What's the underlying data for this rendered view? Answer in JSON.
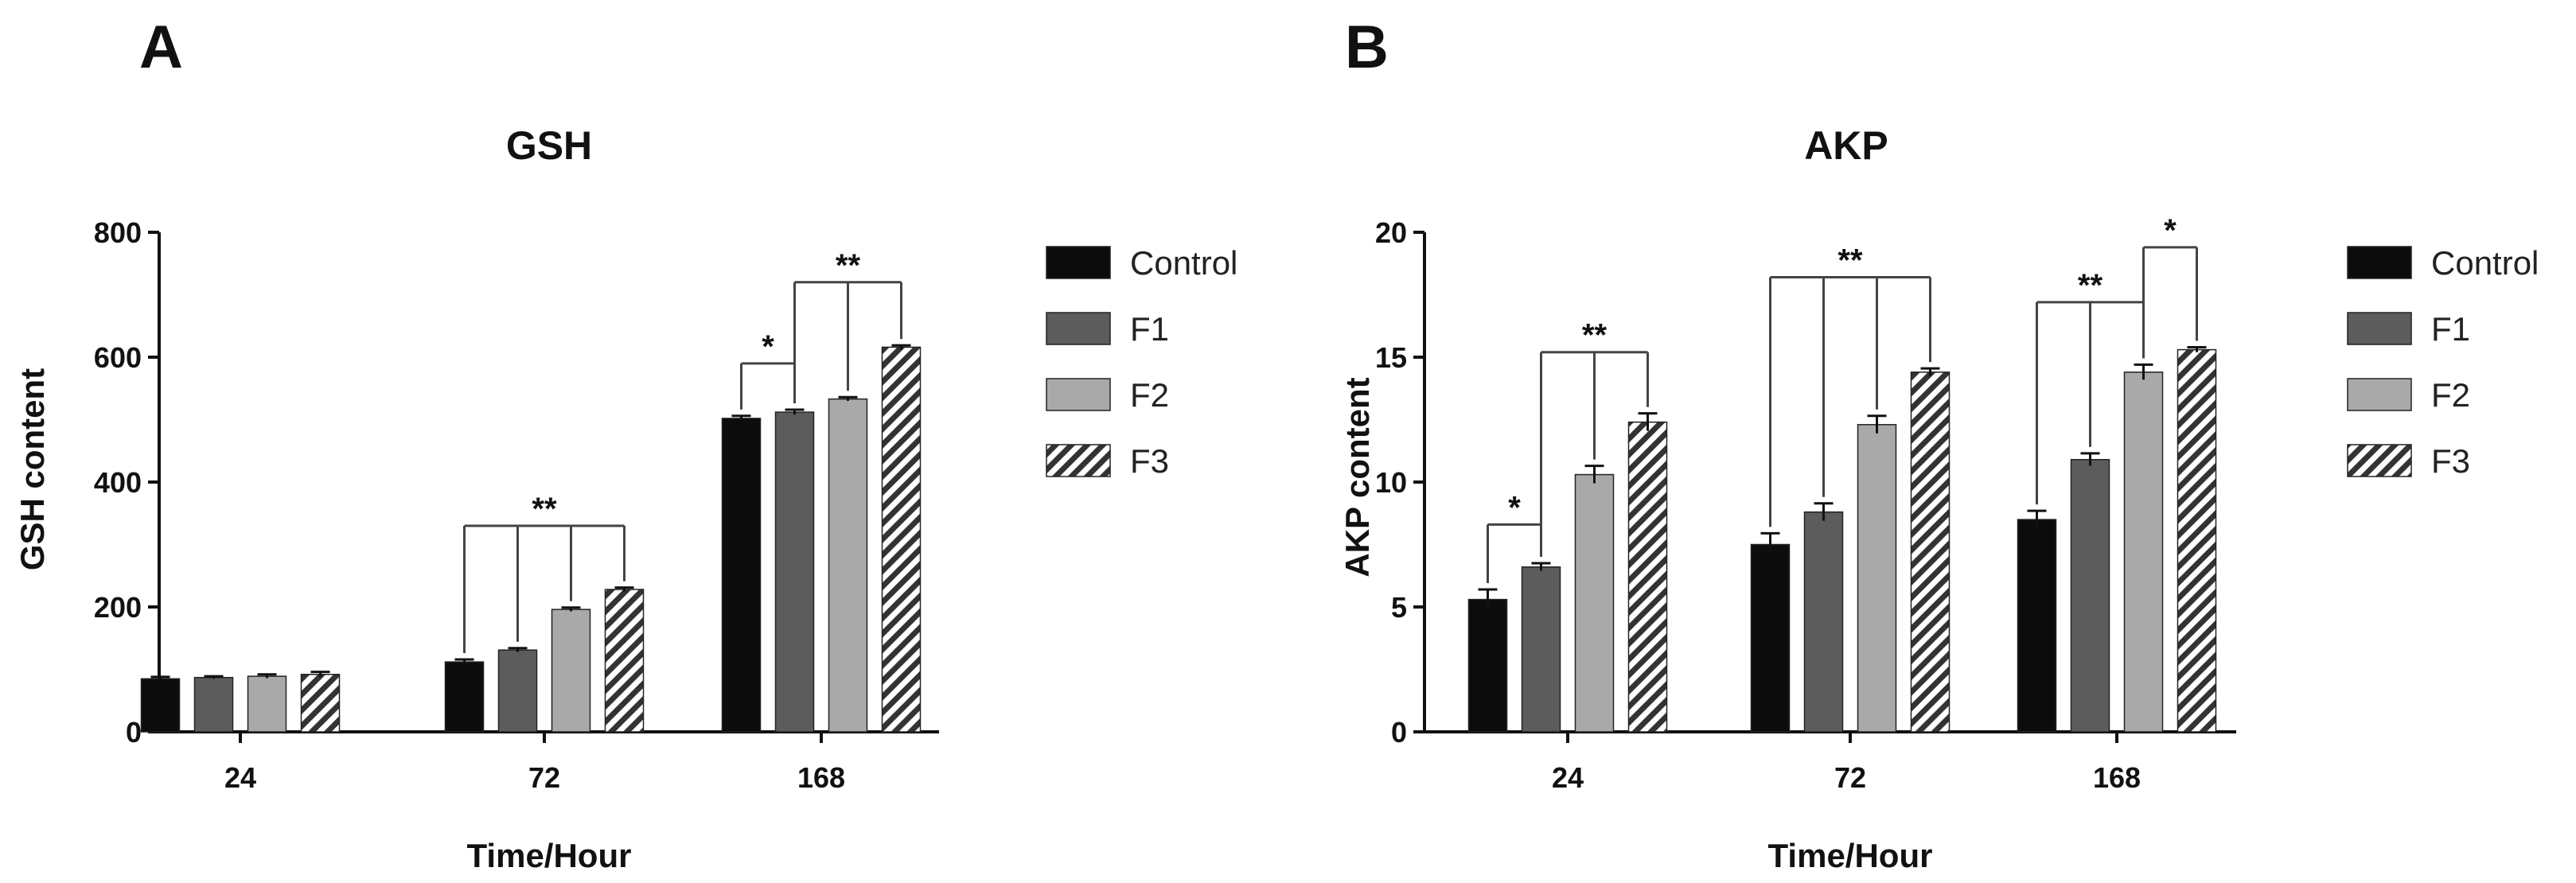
{
  "colors": {
    "Control": "#0c0c0c",
    "F1": "#5c5c5c",
    "F2": "#a9a9a9",
    "F3": "hatch"
  },
  "chart_data": [
    {
      "panel": "A",
      "type": "bar",
      "title": "GSH",
      "xlabel": "Time/Hour",
      "ylabel": "GSH content",
      "categories": [
        "24",
        "72",
        "168"
      ],
      "ylim": [
        0,
        800
      ],
      "yticks": [
        0,
        200,
        400,
        600,
        800
      ],
      "legend": "right",
      "grid": false,
      "series": [
        {
          "name": "Control",
          "values": [
            85,
            112,
            502
          ],
          "errors": [
            3,
            4,
            4
          ]
        },
        {
          "name": "F1",
          "values": [
            87,
            131,
            512
          ],
          "errors": [
            2,
            3,
            4
          ]
        },
        {
          "name": "F2",
          "values": [
            89,
            196,
            533
          ],
          "errors": [
            3,
            3,
            3
          ]
        },
        {
          "name": "F3",
          "values": [
            92,
            228,
            616
          ],
          "errors": [
            4,
            3,
            3
          ]
        }
      ],
      "annotations": [
        {
          "label": "**",
          "group": 1,
          "from": 0,
          "to": [
            1,
            2,
            3
          ],
          "y": 330
        },
        {
          "label": "*",
          "group": 2,
          "from": 0,
          "to": [
            1
          ],
          "y": 590
        },
        {
          "label": "**",
          "group": 2,
          "from": 1,
          "to": [
            2,
            3
          ],
          "y": 720
        }
      ]
    },
    {
      "panel": "B",
      "type": "bar",
      "title": "AKP",
      "xlabel": "Time/Hour",
      "ylabel": "AKP content",
      "categories": [
        "24",
        "72",
        "168"
      ],
      "ylim": [
        0,
        20
      ],
      "yticks": [
        0,
        5,
        10,
        15,
        20
      ],
      "legend": "right",
      "grid": false,
      "series": [
        {
          "name": "Control",
          "values": [
            5.3,
            7.5,
            8.5
          ],
          "errors": [
            0.4,
            0.45,
            0.35
          ]
        },
        {
          "name": "F1",
          "values": [
            6.6,
            8.8,
            10.9
          ],
          "errors": [
            0.15,
            0.35,
            0.25
          ]
        },
        {
          "name": "F2",
          "values": [
            10.3,
            12.3,
            14.4
          ],
          "errors": [
            0.35,
            0.35,
            0.3
          ]
        },
        {
          "name": "F3",
          "values": [
            12.4,
            14.4,
            15.3
          ],
          "errors": [
            0.35,
            0.15,
            0.1
          ]
        }
      ],
      "annotations": [
        {
          "label": "*",
          "group": 0,
          "from": 0,
          "to": [
            1
          ],
          "y": 8.3
        },
        {
          "label": "**",
          "group": 0,
          "from": 1,
          "to": [
            2,
            3
          ],
          "y": 15.2
        },
        {
          "label": "**",
          "group": 1,
          "from": 0,
          "to": [
            1,
            2,
            3
          ],
          "y": 18.2
        },
        {
          "label": "**",
          "group": 2,
          "from": 0,
          "to": [
            1,
            2
          ],
          "y": 17.2
        },
        {
          "label": "*",
          "group": 2,
          "from": 2,
          "to": [
            3
          ],
          "y": 19.4
        }
      ]
    }
  ]
}
